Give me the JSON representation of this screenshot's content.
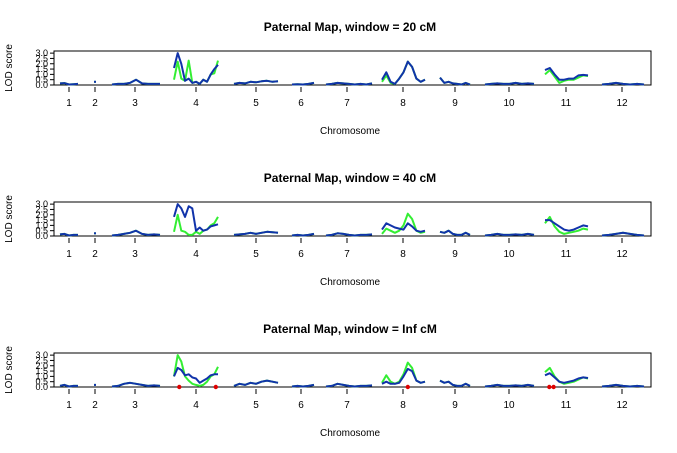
{
  "colors": {
    "green": "#33ee33",
    "blue": "#1133aa",
    "marker": "#dd0000",
    "axis": "#000000"
  },
  "chart_data": [
    {
      "type": "line",
      "title": "Paternal Map, window = 20 cM",
      "xlabel": "Chromosome",
      "ylabel": "LOD score",
      "yticks": [
        "0.0",
        "0.5",
        "1.0",
        "1.5",
        "2.0",
        "2.5",
        "3.0"
      ],
      "ylim": [
        0,
        3.2
      ],
      "chromosomes": [
        "1",
        "2",
        "3",
        "4",
        "5",
        "6",
        "7",
        "8",
        "9",
        "10",
        "11",
        "12"
      ],
      "series": [
        {
          "color": "green",
          "values": [
            [
              0.15,
              0.18,
              0.05,
              0.08,
              0.1
            ],
            [
              0.3
            ],
            [
              0.05,
              0.1,
              0.1,
              0.2,
              0.5,
              0.15,
              0.1,
              0.1,
              0.1
            ],
            [
              0.5,
              2.2,
              0.6,
              0.4,
              2.3,
              0.2,
              0.3,
              0.1,
              0.5,
              0.3,
              1.0,
              1.1,
              2.3
            ],
            [
              0.1,
              0.2,
              0.15,
              0.3,
              0.25,
              0.35,
              0.4,
              0.3,
              0.35
            ],
            [
              0.05,
              0.08,
              0.05,
              0.1,
              0.2
            ],
            [
              0.05,
              0.1,
              0.2,
              0.15,
              0.1,
              0.05,
              0.1,
              0.05,
              0.15
            ],
            [
              0.3,
              0.9,
              0.2,
              0.1,
              0.6,
              1.2,
              2.2,
              1.7,
              0.6,
              0.3,
              0.5
            ],
            [
              0.7,
              0.2,
              0.3,
              0.15,
              0.1,
              0.05,
              0.2,
              0.05
            ],
            [
              0.05,
              0.1,
              0.15,
              0.1,
              0.1,
              0.2,
              0.1,
              0.15,
              0.1
            ],
            [
              1.0,
              1.4,
              0.8,
              0.2,
              0.4,
              0.5,
              0.5,
              0.7,
              0.9,
              0.85
            ],
            [
              0.05,
              0.1,
              0.2,
              0.1,
              0.05,
              0.1,
              0.05
            ]
          ]
        },
        {
          "color": "blue",
          "values": [
            [
              0.15,
              0.18,
              0.05,
              0.08,
              0.1
            ],
            [
              0.3
            ],
            [
              0.05,
              0.1,
              0.1,
              0.2,
              0.5,
              0.15,
              0.1,
              0.1,
              0.1
            ],
            [
              1.6,
              3.0,
              2.0,
              0.4,
              0.6,
              0.2,
              0.3,
              0.1,
              0.5,
              0.3,
              1.0,
              1.5,
              1.9
            ],
            [
              0.1,
              0.2,
              0.15,
              0.3,
              0.25,
              0.35,
              0.4,
              0.3,
              0.35
            ],
            [
              0.05,
              0.08,
              0.05,
              0.1,
              0.2
            ],
            [
              0.05,
              0.1,
              0.2,
              0.15,
              0.1,
              0.05,
              0.1,
              0.05,
              0.15
            ],
            [
              0.5,
              1.2,
              0.3,
              0.1,
              0.6,
              1.2,
              2.2,
              1.7,
              0.6,
              0.3,
              0.5
            ],
            [
              0.7,
              0.2,
              0.3,
              0.15,
              0.1,
              0.05,
              0.2,
              0.05
            ],
            [
              0.05,
              0.1,
              0.15,
              0.1,
              0.1,
              0.2,
              0.1,
              0.15,
              0.1
            ],
            [
              1.4,
              1.6,
              1.0,
              0.5,
              0.5,
              0.6,
              0.6,
              0.9,
              0.95,
              0.9
            ],
            [
              0.05,
              0.1,
              0.2,
              0.1,
              0.05,
              0.1,
              0.05
            ]
          ]
        }
      ],
      "markers": []
    },
    {
      "type": "line",
      "title": "Paternal Map, window = 40 cM",
      "xlabel": "Chromosome",
      "ylabel": "LOD score",
      "yticks": [
        "0.0",
        "0.5",
        "1.0",
        "1.5",
        "2.0",
        "2.5",
        "3.0"
      ],
      "ylim": [
        0,
        3.2
      ],
      "chromosomes": [
        "1",
        "2",
        "3",
        "4",
        "5",
        "6",
        "7",
        "8",
        "9",
        "10",
        "11",
        "12"
      ],
      "series": [
        {
          "color": "green",
          "values": [
            [
              0.15,
              0.2,
              0.05,
              0.1,
              0.1
            ],
            [
              0.25
            ],
            [
              0.05,
              0.1,
              0.2,
              0.3,
              0.5,
              0.2,
              0.1,
              0.15,
              0.1
            ],
            [
              0.4,
              2.0,
              0.5,
              0.4,
              0.1,
              0.1,
              0.4,
              0.2,
              0.5,
              0.6,
              1.0,
              1.2,
              1.8
            ],
            [
              0.1,
              0.15,
              0.2,
              0.3,
              0.2,
              0.3,
              0.4,
              0.35,
              0.3
            ],
            [
              0.05,
              0.1,
              0.05,
              0.1,
              0.2
            ],
            [
              0.05,
              0.1,
              0.25,
              0.2,
              0.1,
              0.05,
              0.1,
              0.1,
              0.15
            ],
            [
              0.2,
              0.7,
              0.5,
              0.3,
              0.5,
              1.0,
              2.1,
              1.6,
              0.5,
              0.3,
              0.4
            ],
            [
              0.4,
              0.3,
              0.5,
              0.2,
              0.1,
              0.1,
              0.3,
              0.1
            ],
            [
              0.05,
              0.1,
              0.2,
              0.1,
              0.1,
              0.15,
              0.1,
              0.2,
              0.1
            ],
            [
              1.2,
              1.8,
              0.9,
              0.4,
              0.2,
              0.3,
              0.4,
              0.5,
              0.7,
              0.6
            ],
            [
              0.05,
              0.1,
              0.2,
              0.3,
              0.2,
              0.1,
              0.05
            ]
          ]
        },
        {
          "color": "blue",
          "values": [
            [
              0.15,
              0.2,
              0.05,
              0.1,
              0.1
            ],
            [
              0.25
            ],
            [
              0.05,
              0.1,
              0.2,
              0.3,
              0.5,
              0.2,
              0.1,
              0.15,
              0.1
            ],
            [
              1.8,
              3.0,
              2.6,
              1.8,
              2.8,
              2.6,
              0.5,
              0.8,
              0.5,
              0.6,
              0.9,
              1.0,
              1.1
            ],
            [
              0.1,
              0.15,
              0.2,
              0.3,
              0.2,
              0.3,
              0.4,
              0.35,
              0.3
            ],
            [
              0.05,
              0.1,
              0.05,
              0.1,
              0.2
            ],
            [
              0.05,
              0.1,
              0.25,
              0.2,
              0.1,
              0.05,
              0.1,
              0.1,
              0.15
            ],
            [
              0.6,
              1.2,
              1.0,
              0.8,
              0.7,
              0.6,
              1.2,
              0.9,
              0.5,
              0.4,
              0.5
            ],
            [
              0.4,
              0.3,
              0.5,
              0.2,
              0.1,
              0.1,
              0.3,
              0.1
            ],
            [
              0.05,
              0.1,
              0.2,
              0.1,
              0.1,
              0.15,
              0.1,
              0.2,
              0.1
            ],
            [
              1.5,
              1.5,
              1.2,
              0.9,
              0.6,
              0.5,
              0.6,
              0.8,
              1.0,
              0.9
            ],
            [
              0.05,
              0.1,
              0.2,
              0.3,
              0.2,
              0.1,
              0.05
            ]
          ]
        }
      ],
      "markers": []
    },
    {
      "type": "line",
      "title": "Paternal Map, window = Inf cM",
      "xlabel": "Chromosome",
      "ylabel": "LOD score",
      "yticks": [
        "0.0",
        "0.5",
        "1.0",
        "1.5",
        "2.0",
        "2.5",
        "3.0"
      ],
      "ylim": [
        0,
        3.2
      ],
      "chromosomes": [
        "1",
        "2",
        "3",
        "4",
        "5",
        "6",
        "7",
        "8",
        "9",
        "10",
        "11",
        "12"
      ],
      "series": [
        {
          "color": "green",
          "values": [
            [
              0.1,
              0.2,
              0.05,
              0.1,
              0.1
            ],
            [
              0.2
            ],
            [
              0.05,
              0.1,
              0.3,
              0.4,
              0.3,
              0.2,
              0.1,
              0.15,
              0.1
            ],
            [
              1.0,
              3.0,
              2.4,
              1.0,
              0.6,
              0.3,
              0.2,
              0.1,
              0.2,
              0.5,
              1.0,
              1.2,
              1.9
            ],
            [
              0.1,
              0.3,
              0.2,
              0.4,
              0.3,
              0.5,
              0.6,
              0.5,
              0.4
            ],
            [
              0.05,
              0.1,
              0.05,
              0.1,
              0.2
            ],
            [
              0.05,
              0.1,
              0.3,
              0.2,
              0.1,
              0.05,
              0.1,
              0.1,
              0.15
            ],
            [
              0.4,
              1.1,
              0.5,
              0.3,
              0.5,
              1.2,
              2.3,
              1.8,
              0.6,
              0.4,
              0.5
            ],
            [
              0.6,
              0.4,
              0.5,
              0.2,
              0.1,
              0.1,
              0.3,
              0.1
            ],
            [
              0.05,
              0.1,
              0.2,
              0.1,
              0.1,
              0.15,
              0.1,
              0.2,
              0.1
            ],
            [
              1.4,
              1.8,
              1.0,
              0.5,
              0.3,
              0.4,
              0.5,
              0.7,
              0.9,
              0.8
            ],
            [
              0.05,
              0.1,
              0.2,
              0.1,
              0.05,
              0.1,
              0.05
            ]
          ]
        },
        {
          "color": "blue",
          "values": [
            [
              0.1,
              0.2,
              0.05,
              0.1,
              0.1
            ],
            [
              0.2
            ],
            [
              0.05,
              0.1,
              0.3,
              0.4,
              0.3,
              0.2,
              0.1,
              0.15,
              0.1
            ],
            [
              1.0,
              1.8,
              1.6,
              1.1,
              1.2,
              0.9,
              0.8,
              0.4,
              0.6,
              0.8,
              1.1,
              1.2,
              1.2
            ],
            [
              0.1,
              0.3,
              0.2,
              0.4,
              0.3,
              0.5,
              0.6,
              0.5,
              0.4
            ],
            [
              0.05,
              0.1,
              0.05,
              0.1,
              0.2
            ],
            [
              0.05,
              0.1,
              0.3,
              0.2,
              0.1,
              0.05,
              0.1,
              0.1,
              0.15
            ],
            [
              0.3,
              0.5,
              0.3,
              0.3,
              0.4,
              1.0,
              1.7,
              1.5,
              0.6,
              0.4,
              0.5
            ],
            [
              0.6,
              0.4,
              0.5,
              0.2,
              0.1,
              0.1,
              0.3,
              0.1
            ],
            [
              0.05,
              0.1,
              0.2,
              0.1,
              0.1,
              0.15,
              0.1,
              0.2,
              0.1
            ],
            [
              1.1,
              1.3,
              0.9,
              0.5,
              0.4,
              0.5,
              0.6,
              0.8,
              0.9,
              0.85
            ],
            [
              0.05,
              0.1,
              0.2,
              0.1,
              0.05,
              0.1,
              0.05
            ]
          ]
        }
      ],
      "markers": [
        {
          "chromosome": "4",
          "position": 0.12
        },
        {
          "chromosome": "4",
          "position": 0.95
        },
        {
          "chromosome": "8",
          "position": 0.6
        },
        {
          "chromosome": "11",
          "position": 0.1
        },
        {
          "chromosome": "11",
          "position": 0.2
        }
      ]
    }
  ]
}
